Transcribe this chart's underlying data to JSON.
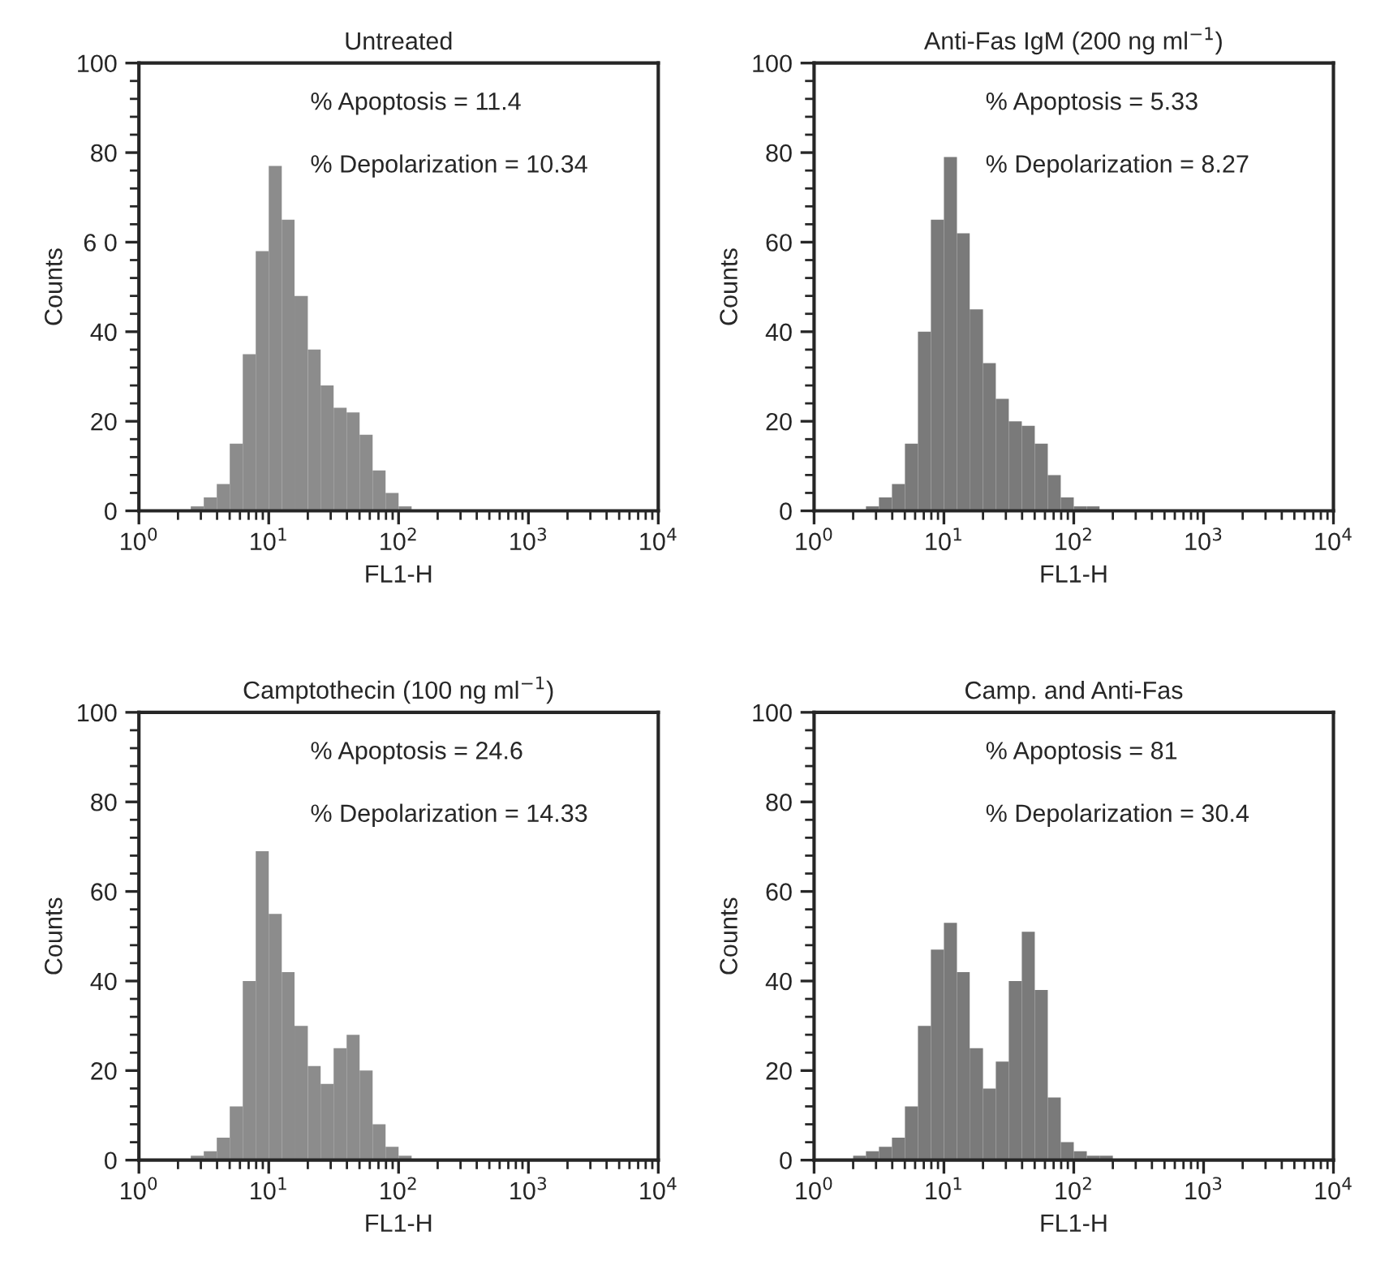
{
  "chart_data": [
    {
      "type": "histogram",
      "title": "Untreated",
      "xlabel": "FL1-H",
      "ylabel": "Counts",
      "log": "x",
      "color": "#8c8c8c",
      "bins": [
        2.51,
        3.16,
        3.98,
        5.01,
        6.31,
        7.94,
        10,
        12.6,
        15.8,
        20,
        25.1,
        31.6,
        39.8,
        50.1,
        63.1,
        79.4,
        100,
        126
      ],
      "values": [
        1,
        3,
        6,
        15,
        35,
        58,
        77,
        65,
        48,
        36,
        28,
        23,
        22,
        17,
        9,
        4,
        1
      ],
      "xlim": [
        1,
        10000
      ],
      "xticks": [
        {
          "value": 1,
          "label": "10$^{0}$"
        },
        {
          "value": 10,
          "label": "10$^{1}$"
        },
        {
          "value": 100,
          "label": "10$^{2}$"
        },
        {
          "value": 1000,
          "label": "10$^{3}$"
        },
        {
          "value": 10000,
          "label": "10$^{4}$"
        }
      ],
      "ylim": [
        0,
        100
      ],
      "yticks": [
        0,
        20,
        40,
        {
          "value": 60,
          "label": "6 0"
        },
        80,
        100
      ],
      "annotations": [
        "% Apoptosis = 11.4",
        "% Depolarization = 10.34"
      ]
    },
    {
      "type": "histogram",
      "title": "Anti-Fas IgM (200 ng ml$^{−1}$)",
      "xlabel": "FL1-H",
      "ylabel": "Counts",
      "log": "x",
      "color": "#7a7a7a",
      "bins": [
        2.51,
        3.16,
        3.98,
        5.01,
        6.31,
        7.94,
        10,
        12.6,
        15.8,
        20,
        25.1,
        31.6,
        39.8,
        50.1,
        63.1,
        79.4,
        100,
        126,
        158
      ],
      "values": [
        1,
        3,
        6,
        15,
        40,
        65,
        79,
        62,
        45,
        33,
        25,
        20,
        19,
        15,
        8,
        3,
        1,
        1
      ],
      "xlim": [
        1,
        10000
      ],
      "xticks": [
        {
          "value": 1,
          "label": "10$^{0}$"
        },
        {
          "value": 10,
          "label": "10$^{1}$"
        },
        {
          "value": 100,
          "label": "10$^{2}$"
        },
        {
          "value": 1000,
          "label": "10$^{3}$"
        },
        {
          "value": 10000,
          "label": "10$^{4}$"
        }
      ],
      "ylim": [
        0,
        100
      ],
      "yticks": [
        0,
        20,
        40,
        60,
        80,
        100
      ],
      "annotations": [
        "% Apoptosis = 5.33",
        "% Depolarization = 8.27"
      ]
    },
    {
      "type": "histogram",
      "title": "Camptothecin (100 ng ml$^{−1}$)",
      "xlabel": "FL1-H",
      "ylabel": "Counts",
      "log": "x",
      "color": "#8c8c8c",
      "bins": [
        2.51,
        3.16,
        3.98,
        5.01,
        6.31,
        7.94,
        10,
        12.6,
        15.8,
        20,
        25.1,
        31.6,
        39.8,
        50.1,
        63.1,
        79.4,
        100,
        126
      ],
      "values": [
        1,
        2,
        5,
        12,
        40,
        69,
        55,
        42,
        30,
        21,
        17,
        25,
        28,
        20,
        8,
        3,
        1
      ],
      "xlim": [
        1,
        10000
      ],
      "xticks": [
        {
          "value": 1,
          "label": "10$^{0}$"
        },
        {
          "value": 10,
          "label": "10$^{1}$"
        },
        {
          "value": 100,
          "label": "10$^{2}$"
        },
        {
          "value": 1000,
          "label": "10$^{3}$"
        },
        {
          "value": 10000,
          "label": "10$^{4}$"
        }
      ],
      "ylim": [
        0,
        100
      ],
      "yticks": [
        0,
        20,
        40,
        60,
        80,
        100
      ],
      "annotations": [
        "% Apoptosis = 24.6",
        "% Depolarization = 14.33"
      ]
    },
    {
      "type": "histogram",
      "title": "Camp. and Anti-Fas",
      "xlabel": "FL1-H",
      "ylabel": "Counts",
      "log": "x",
      "color": "#7a7a7a",
      "bins": [
        2.0,
        2.51,
        3.16,
        3.98,
        5.01,
        6.31,
        7.94,
        10,
        12.6,
        15.8,
        20,
        25.1,
        31.6,
        39.8,
        50.1,
        63.1,
        79.4,
        100,
        126,
        158,
        200
      ],
      "values": [
        1,
        2,
        3,
        5,
        12,
        30,
        47,
        53,
        42,
        25,
        16,
        22,
        40,
        51,
        38,
        14,
        4,
        2,
        1,
        1
      ],
      "xlim": [
        1,
        10000
      ],
      "xticks": [
        {
          "value": 1,
          "label": "10$^{0}$"
        },
        {
          "value": 10,
          "label": "10$^{1}$"
        },
        {
          "value": 100,
          "label": "10$^{2}$"
        },
        {
          "value": 1000,
          "label": "10$^{3}$"
        },
        {
          "value": 10000,
          "label": "10$^{4}$"
        }
      ],
      "ylim": [
        0,
        100
      ],
      "yticks": [
        0,
        20,
        40,
        60,
        80,
        100
      ],
      "annotations": [
        "% Apoptosis = 81",
        "% Depolarization = 30.4"
      ]
    }
  ]
}
